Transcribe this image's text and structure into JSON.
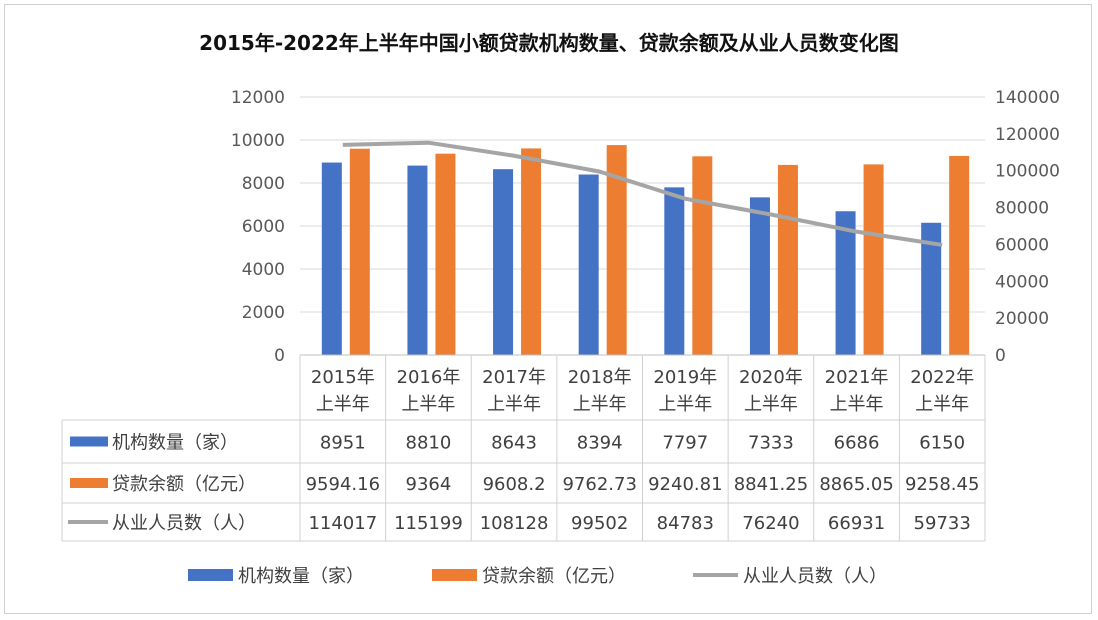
{
  "chart_data": {
    "type": "bar+line",
    "title": "2015年-2022年上半年中国小额贷款机构数量、贷款余额及从业人员数变化图",
    "categories": [
      [
        "2015年",
        "上半年"
      ],
      [
        "2016年",
        "上半年"
      ],
      [
        "2017年",
        "上半年"
      ],
      [
        "2018年",
        "上半年"
      ],
      [
        "2019年",
        "上半年"
      ],
      [
        "2020年",
        "上半年"
      ],
      [
        "2021年",
        "上半年"
      ],
      [
        "2022年",
        "上半年"
      ]
    ],
    "y_left": {
      "range": [
        0,
        12000
      ],
      "ticks": [
        "0",
        "2000",
        "4000",
        "6000",
        "8000",
        "10000",
        "12000"
      ]
    },
    "y_right": {
      "range": [
        0,
        140000
      ],
      "ticks": [
        "0",
        "20000",
        "40000",
        "60000",
        "80000",
        "100000",
        "120000",
        "140000"
      ]
    },
    "grid": true,
    "legend_position": "bottom",
    "series": [
      {
        "name": "机构数量（家）",
        "type": "bar",
        "axis": "left",
        "color": "#4472C4",
        "values": [
          8951,
          8810,
          8643,
          8394,
          7797,
          7333,
          6686,
          6150
        ],
        "labels": [
          "8951",
          "8810",
          "8643",
          "8394",
          "7797",
          "7333",
          "6686",
          "6150"
        ]
      },
      {
        "name": "贷款余额（亿元）",
        "type": "bar",
        "axis": "left",
        "color": "#ED7D31",
        "values": [
          9594.16,
          9364,
          9608.2,
          9762.73,
          9240.81,
          8841.25,
          8865.05,
          9258.45
        ],
        "labels": [
          "9594.16",
          "9364",
          "9608.2",
          "9762.73",
          "9240.81",
          "8841.25",
          "8865.05",
          "9258.45"
        ]
      },
      {
        "name": "从业人员数（人）",
        "type": "line",
        "axis": "right",
        "color": "#A5A5A5",
        "values": [
          114017,
          115199,
          108128,
          99502,
          84783,
          76240,
          66931,
          59733
        ],
        "labels": [
          "114017",
          "115199",
          "108128",
          "99502",
          "84783",
          "76240",
          "66931",
          "59733"
        ]
      }
    ]
  }
}
